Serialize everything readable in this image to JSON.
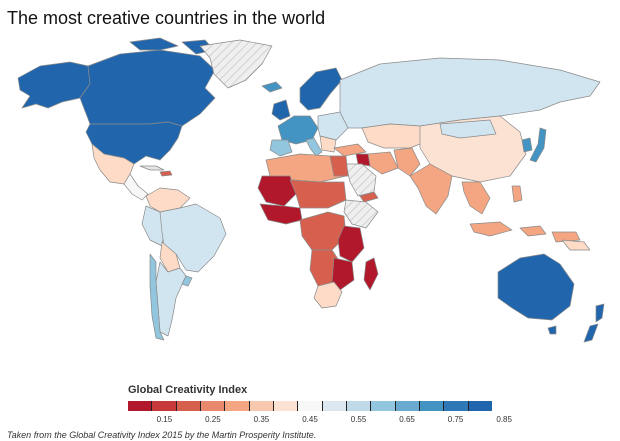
{
  "title": "The most creative countries in the world",
  "legend": {
    "title": "Global Creativity Index",
    "labels": [
      "0.15",
      "0.25",
      "0.35",
      "0.45",
      "0.55",
      "0.65",
      "0.75",
      "0.85"
    ],
    "colors": [
      "#b2182b",
      "#c7383a",
      "#d6604d",
      "#e8896f",
      "#f4a582",
      "#f7c8ae",
      "#fbe2d3",
      "#f7f7f7",
      "#dbe8f1",
      "#c0d9e9",
      "#92c5de",
      "#6aa9d0",
      "#4393c3",
      "#2f78b8",
      "#2166ac"
    ]
  },
  "source": "Taken from the Global Creativity Index 2015 by the Martin Prosperity Institute.",
  "colors": {
    "no_data": "#e6e6e6",
    "hatch": "#c8c8c8",
    "top": "#2166ac",
    "high": "#4393c3",
    "mid_high": "#92c5de",
    "mid": "#d1e5f0",
    "neutral": "#f7f7f7",
    "low_mid": "#fddbc7",
    "low": "#f4a582",
    "lower": "#d6604d",
    "lowest": "#b2182b"
  }
}
